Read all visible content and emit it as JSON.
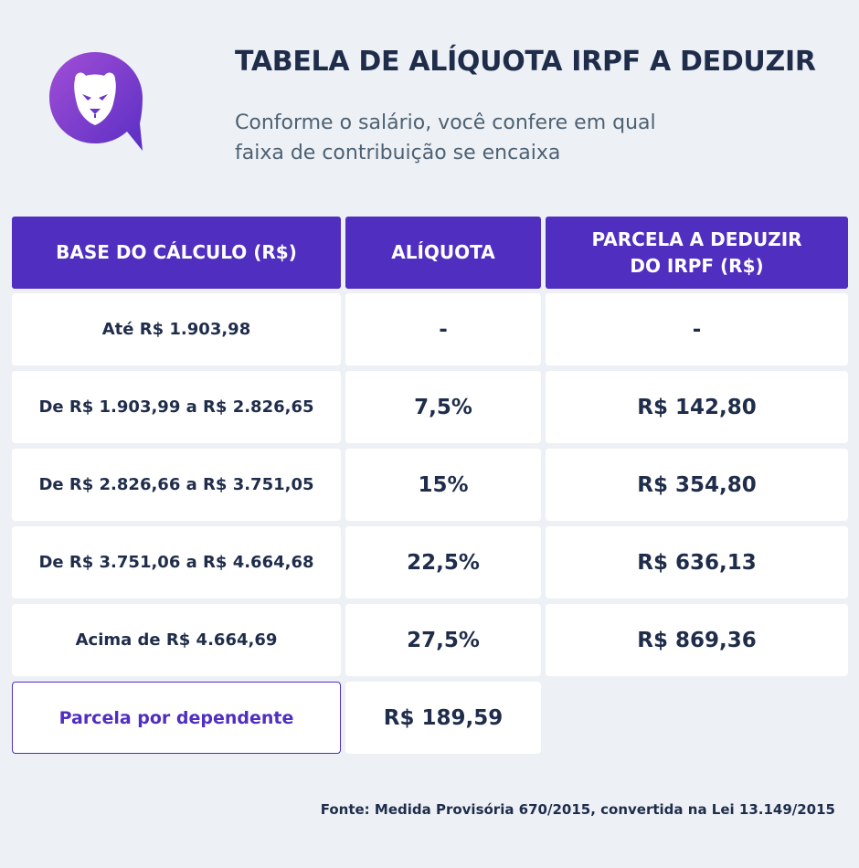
{
  "header": {
    "title": "TABELA DE ALÍQUOTA IRPF A DEDUZIR",
    "subtitle_line1": "Conforme o salário, você confere em qual",
    "subtitle_line2": "faixa de contribuição se encaixa",
    "logo_icon": "panther-chat-logo-icon",
    "brand_color": "#4f2ec0"
  },
  "table": {
    "headers": {
      "base": "BASE DO CÁLCULO (R$)",
      "aliquota": "ALÍQUOTA",
      "parcela_line1": "PARCELA A DEDUZIR",
      "parcela_line2": "DO IRPF (R$)"
    },
    "rows": [
      {
        "base": "Até R$ 1.903,98",
        "aliquota": "-",
        "parcela": "-"
      },
      {
        "base": "De R$ 1.903,99 a R$ 2.826,65",
        "aliquota": "7,5%",
        "parcela": "R$ 142,80"
      },
      {
        "base": "De R$ 2.826,66 a R$ 3.751,05",
        "aliquota": "15%",
        "parcela": "R$ 354,80"
      },
      {
        "base": "De R$ 3.751,06 a R$ 4.664,68",
        "aliquota": "22,5%",
        "parcela": "R$ 636,13"
      },
      {
        "base": "Acima de R$ 4.664,69",
        "aliquota": "27,5%",
        "parcela": "R$ 869,36"
      }
    ],
    "dependent": {
      "label": "Parcela por dependente",
      "value": "R$ 189,59"
    }
  },
  "footer": {
    "source": "Fonte: Medida Provisória 670/2015, convertida na Lei 13.149/2015"
  }
}
